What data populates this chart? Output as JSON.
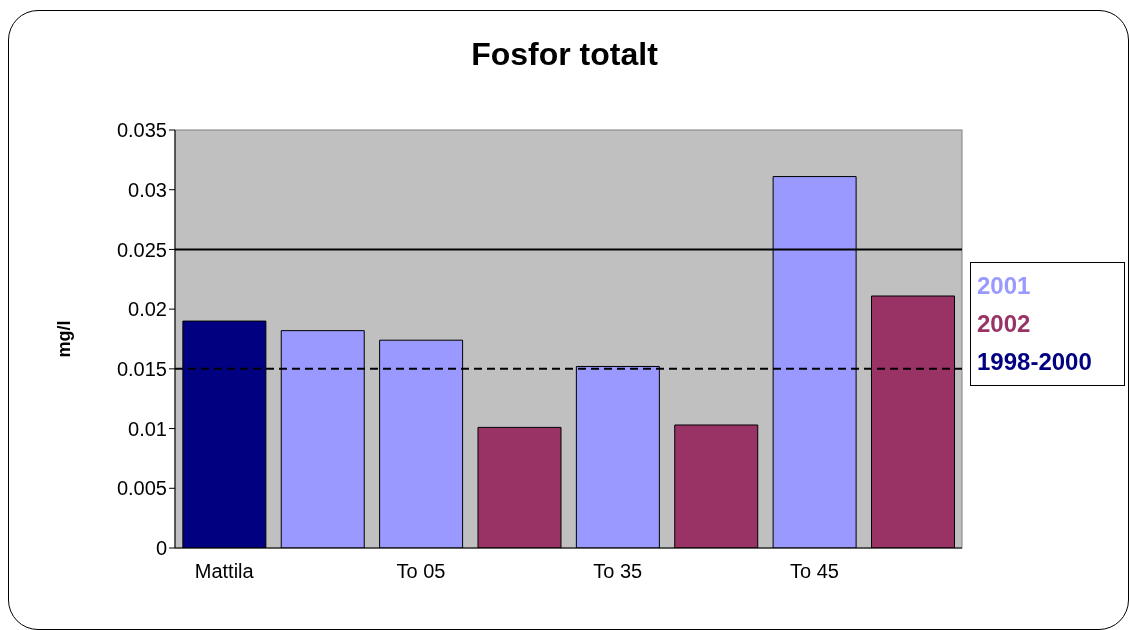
{
  "chart_data": {
    "type": "bar",
    "title": "Fosfor totalt",
    "ylabel": "mg/l",
    "stacked": true,
    "categories": [
      "Mattila",
      null,
      "To 05",
      null,
      "To 35",
      null,
      "To 45",
      null
    ],
    "series": [
      {
        "name": "2001",
        "color": "#9999ff",
        "values": [
          null,
          0.0182,
          0.0174,
          null,
          0.0152,
          null,
          0.0311,
          null
        ]
      },
      {
        "name": "2002",
        "color": "#993366",
        "values": [
          null,
          null,
          null,
          0.0101,
          null,
          0.0103,
          null,
          0.0211
        ]
      },
      {
        "name": "1998-2000",
        "color": "#000080",
        "values": [
          0.019,
          null,
          null,
          null,
          null,
          null,
          null,
          null
        ]
      }
    ],
    "ylim": [
      0,
      0.035
    ],
    "yticks": [
      0,
      0.005,
      0.01,
      0.015,
      0.02,
      0.025,
      0.03,
      0.035
    ],
    "ref_lines": [
      {
        "axis": "y",
        "value": 0.025,
        "color": "#000000",
        "line_style": "solid"
      },
      {
        "axis": "y",
        "value": 0.015,
        "color": "#000000",
        "line_style": "dashed"
      }
    ],
    "legend": "right",
    "grid": false
  }
}
